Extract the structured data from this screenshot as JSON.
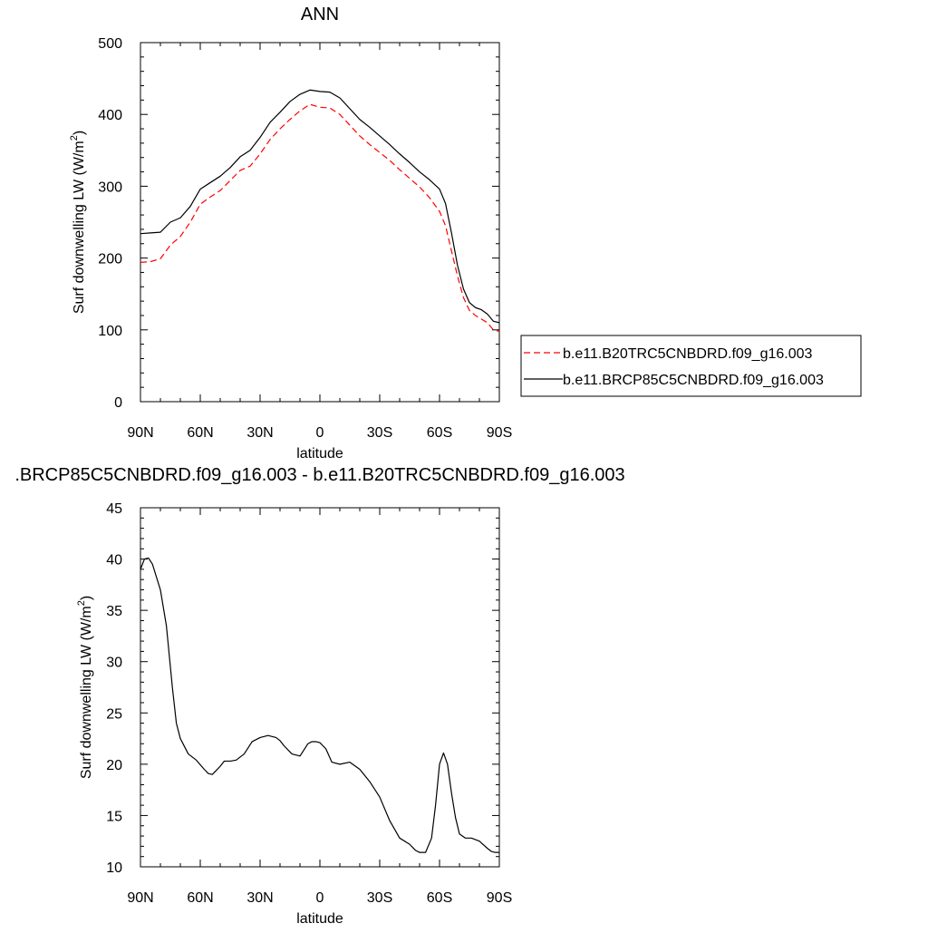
{
  "chart_data": [
    {
      "type": "line",
      "title": "ANN",
      "xlabel": "latitude",
      "ylabel": "Surf downwelling LW (W/m",
      "ylabel_sup": "2",
      "ylabel_close": ")",
      "xlim": [
        90,
        -90
      ],
      "ylim": [
        0,
        500
      ],
      "x_ticks": [
        90,
        60,
        30,
        0,
        -30,
        -60,
        -90
      ],
      "x_tick_labels": [
        "90N",
        "60N",
        "30N",
        "0",
        "30S",
        "60S",
        "90S"
      ],
      "x_minor_step": 10,
      "y_ticks": [
        0,
        100,
        200,
        300,
        400,
        500
      ],
      "y_tick_labels": [
        "0",
        "100",
        "200",
        "300",
        "400",
        "500"
      ],
      "y_minor_step": 20,
      "legend_position": "right, outside plot",
      "series": [
        {
          "name": "b.e11.B20TRC5CNBDRD.f09_g16.003",
          "color": "#ff0000",
          "dash": "dashed",
          "x": [
            90,
            85,
            80,
            75,
            70,
            65,
            60,
            55,
            50,
            45,
            40,
            35,
            30,
            25,
            20,
            15,
            10,
            5,
            0,
            -5,
            -10,
            -15,
            -20,
            -25,
            -30,
            -35,
            -40,
            -45,
            -50,
            -55,
            -60,
            -63,
            -66,
            -69,
            -72,
            -75,
            -78,
            -81,
            -84,
            -87,
            -90
          ],
          "y": [
            194,
            195,
            199,
            218,
            230,
            250,
            275,
            285,
            294,
            308,
            322,
            328,
            345,
            365,
            380,
            393,
            405,
            414,
            410,
            409,
            400,
            385,
            370,
            358,
            347,
            336,
            323,
            311,
            299,
            284,
            265,
            245,
            210,
            175,
            145,
            127,
            120,
            115,
            110,
            100,
            98
          ]
        },
        {
          "name": "b.e11.BRCP85C5CNBDRD.f09_g16.003",
          "color": "#000000",
          "dash": "solid",
          "x": [
            90,
            85,
            80,
            75,
            70,
            65,
            60,
            55,
            50,
            45,
            40,
            35,
            30,
            25,
            20,
            15,
            10,
            5,
            0,
            -5,
            -10,
            -15,
            -20,
            -25,
            -30,
            -35,
            -40,
            -45,
            -50,
            -55,
            -60,
            -63,
            -66,
            -69,
            -72,
            -75,
            -78,
            -81,
            -84,
            -87,
            -90
          ],
          "y": [
            234,
            235,
            236,
            250,
            256,
            272,
            296,
            305,
            314,
            326,
            341,
            350,
            368,
            389,
            403,
            418,
            428,
            434,
            432,
            431,
            423,
            408,
            393,
            382,
            370,
            358,
            345,
            333,
            320,
            309,
            296,
            276,
            235,
            190,
            157,
            138,
            131,
            128,
            122,
            112,
            110
          ]
        }
      ]
    },
    {
      "type": "line",
      "title": ".BRCP85C5CNBDRD.f09_g16.003 - b.e11.B20TRC5CNBDRD.f09_g16.003",
      "xlabel": "latitude",
      "ylabel": "Surf downwelling LW (W/m",
      "ylabel_sup": "2",
      "ylabel_close": ")",
      "xlim": [
        90,
        -90
      ],
      "ylim": [
        10,
        45
      ],
      "x_ticks": [
        90,
        60,
        30,
        0,
        -30,
        -60,
        -90
      ],
      "x_tick_labels": [
        "90N",
        "60N",
        "30N",
        "0",
        "30S",
        "60S",
        "90S"
      ],
      "x_minor_step": 10,
      "y_ticks": [
        10,
        15,
        20,
        25,
        30,
        35,
        40,
        45
      ],
      "y_tick_labels": [
        "10",
        "15",
        "20",
        "25",
        "30",
        "35",
        "40",
        "45"
      ],
      "y_minor_step": 1,
      "series": [
        {
          "color": "#000000",
          "dash": "solid",
          "x": [
            90,
            88,
            86,
            84,
            80,
            77,
            74,
            72,
            70,
            66,
            62,
            58,
            56,
            54,
            52,
            50,
            48,
            45,
            42,
            38,
            34,
            30,
            26,
            22,
            20,
            18,
            14,
            10,
            8,
            6,
            4,
            2,
            0,
            -3,
            -6,
            -10,
            -15,
            -20,
            -25,
            -30,
            -35,
            -40,
            -45,
            -48,
            -50,
            -53,
            -56,
            -58,
            -60,
            -62,
            -64,
            -66,
            -68,
            -70,
            -73,
            -76,
            -80,
            -84,
            -86,
            -88,
            -90
          ],
          "y": [
            39.0,
            40.0,
            40.1,
            39.5,
            37.0,
            33.5,
            27.5,
            24.0,
            22.5,
            21.0,
            20.4,
            19.5,
            19.1,
            19.0,
            19.4,
            19.8,
            20.3,
            20.3,
            20.4,
            21.0,
            22.2,
            22.6,
            22.8,
            22.6,
            22.3,
            21.8,
            21.0,
            20.8,
            21.4,
            22.0,
            22.2,
            22.2,
            22.1,
            21.5,
            20.2,
            20.0,
            20.2,
            19.5,
            18.3,
            16.8,
            14.5,
            12.8,
            12.2,
            11.6,
            11.4,
            11.4,
            12.8,
            16.0,
            20.0,
            21.1,
            20.0,
            17.2,
            14.8,
            13.2,
            12.8,
            12.8,
            12.5,
            11.8,
            11.5,
            11.4,
            11.4
          ]
        }
      ]
    }
  ]
}
